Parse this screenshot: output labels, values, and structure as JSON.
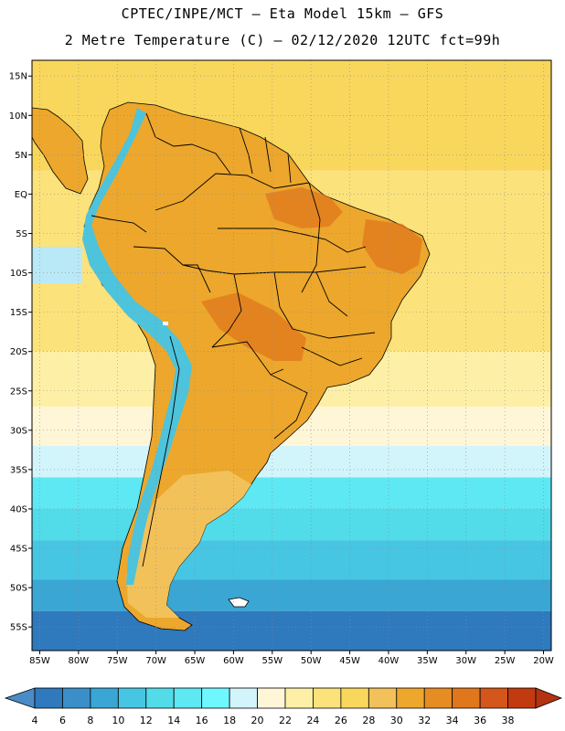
{
  "header": {
    "line1": "CPTEC/INPE/MCT –  Eta Model 15km – GFS",
    "line2": "2 Metre Temperature (C) – 02/12/2020 12UTC fct=99h"
  },
  "map": {
    "lon_range": [
      -86,
      -19
    ],
    "lat_range": [
      -58,
      17
    ],
    "lat_ticks": [
      {
        "value": 15,
        "label": "15N"
      },
      {
        "value": 10,
        "label": "10N"
      },
      {
        "value": 5,
        "label": "5N"
      },
      {
        "value": 0,
        "label": "EQ"
      },
      {
        "value": -5,
        "label": "5S"
      },
      {
        "value": -10,
        "label": "10S"
      },
      {
        "value": -15,
        "label": "15S"
      },
      {
        "value": -20,
        "label": "20S"
      },
      {
        "value": -25,
        "label": "25S"
      },
      {
        "value": -30,
        "label": "30S"
      },
      {
        "value": -35,
        "label": "35S"
      },
      {
        "value": -40,
        "label": "40S"
      },
      {
        "value": -45,
        "label": "45S"
      },
      {
        "value": -50,
        "label": "50S"
      },
      {
        "value": -55,
        "label": "55S"
      }
    ],
    "lon_ticks": [
      {
        "value": -85,
        "label": "85W"
      },
      {
        "value": -80,
        "label": "80W"
      },
      {
        "value": -75,
        "label": "75W"
      },
      {
        "value": -70,
        "label": "70W"
      },
      {
        "value": -65,
        "label": "65W"
      },
      {
        "value": -60,
        "label": "60W"
      },
      {
        "value": -55,
        "label": "55W"
      },
      {
        "value": -50,
        "label": "50W"
      },
      {
        "value": -45,
        "label": "45W"
      },
      {
        "value": -40,
        "label": "40W"
      },
      {
        "value": -35,
        "label": "35W"
      },
      {
        "value": -30,
        "label": "30W"
      },
      {
        "value": -25,
        "label": "25W"
      },
      {
        "value": -20,
        "label": "20W"
      }
    ],
    "ocean_bands": [
      {
        "lat_top": 17,
        "lat_bottom": 3,
        "color": "#f9d75c"
      },
      {
        "lat_top": 3,
        "lat_bottom": -20,
        "color": "#fbe27a"
      },
      {
        "lat_top": -20,
        "lat_bottom": -27,
        "color": "#fdf0a6"
      },
      {
        "lat_top": -27,
        "lat_bottom": -32,
        "color": "#fff6d8"
      },
      {
        "lat_top": -32,
        "lat_bottom": -36,
        "color": "#d2f4fb"
      },
      {
        "lat_top": -36,
        "lat_bottom": -40,
        "color": "#5ee8f3"
      },
      {
        "lat_top": -40,
        "lat_bottom": -44,
        "color": "#52dbe9"
      },
      {
        "lat_top": -44,
        "lat_bottom": -49,
        "color": "#46c6e2"
      },
      {
        "lat_top": -49,
        "lat_bottom": -53,
        "color": "#3aa6d4"
      },
      {
        "lat_top": -53,
        "lat_bottom": -58,
        "color": "#2f79bd"
      }
    ],
    "pacific_cool_color": "#b9e9f6",
    "land_color": "#eca72c",
    "land_hot_color": "#e0771c",
    "andes_color": "#4ec3dc",
    "south_land_color": "#f2c15a",
    "border_color": "#000000"
  },
  "colorbar": {
    "labels": [
      "4",
      "6",
      "8",
      "10",
      "12",
      "14",
      "16",
      "18",
      "20",
      "22",
      "24",
      "26",
      "28",
      "30",
      "32",
      "34",
      "36",
      "38"
    ],
    "colors": [
      "#4a8cc6",
      "#2f79bd",
      "#3a8fc9",
      "#3aa6d4",
      "#46c6e2",
      "#52dbe9",
      "#5ee8f3",
      "#6ff7ff",
      "#d2f4fb",
      "#fff6d8",
      "#fdf0a6",
      "#fbe27a",
      "#f9d75c",
      "#f2c15a",
      "#eca72c",
      "#e58c23",
      "#e0771c",
      "#d4561a",
      "#c23a10",
      "#b53210"
    ]
  }
}
